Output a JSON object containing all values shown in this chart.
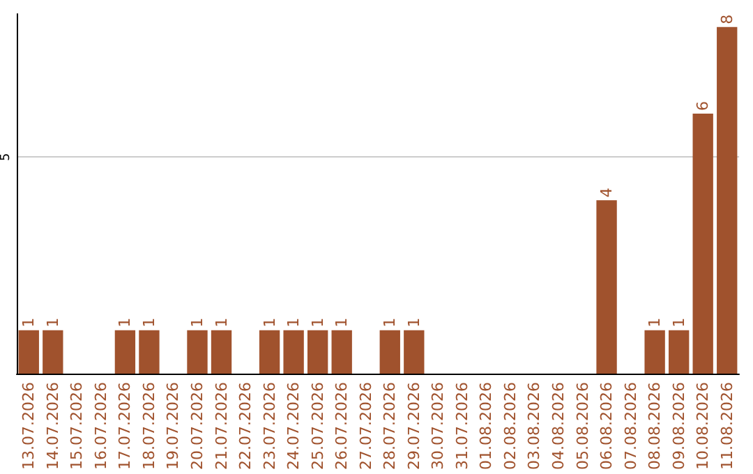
{
  "chart_data": {
    "type": "bar",
    "categories": [
      "13.07.2026",
      "14.07.2026",
      "15.07.2026",
      "16.07.2026",
      "17.07.2026",
      "18.07.2026",
      "19.07.2026",
      "20.07.2026",
      "21.07.2026",
      "22.07.2026",
      "23.07.2026",
      "24.07.2026",
      "25.07.2026",
      "26.07.2026",
      "27.07.2026",
      "28.07.2026",
      "29.07.2026",
      "30.07.2026",
      "31.07.2026",
      "01.08.2026",
      "02.08.2026",
      "03.08.2026",
      "04.08.2026",
      "05.08.2026",
      "06.08.2026",
      "07.08.2026",
      "08.08.2026",
      "09.08.2026",
      "10.08.2026",
      "11.08.2026"
    ],
    "values": [
      1,
      1,
      0,
      0,
      1,
      1,
      0,
      1,
      1,
      0,
      1,
      1,
      1,
      1,
      0,
      1,
      1,
      0,
      0,
      0,
      0,
      0,
      0,
      0,
      4,
      0,
      1,
      1,
      6,
      8
    ],
    "value_labels": [
      "1",
      "1",
      null,
      null,
      "1",
      "1",
      null,
      "1",
      "1",
      null,
      "1",
      "1",
      "1",
      "1",
      null,
      "1",
      "1",
      null,
      null,
      null,
      null,
      null,
      null,
      null,
      "4",
      null,
      "1",
      "1",
      "6",
      "8"
    ],
    "color": "#a0522d",
    "ylim": [
      0,
      8.3
    ],
    "yticks": [
      5
    ],
    "grid": "y"
  }
}
